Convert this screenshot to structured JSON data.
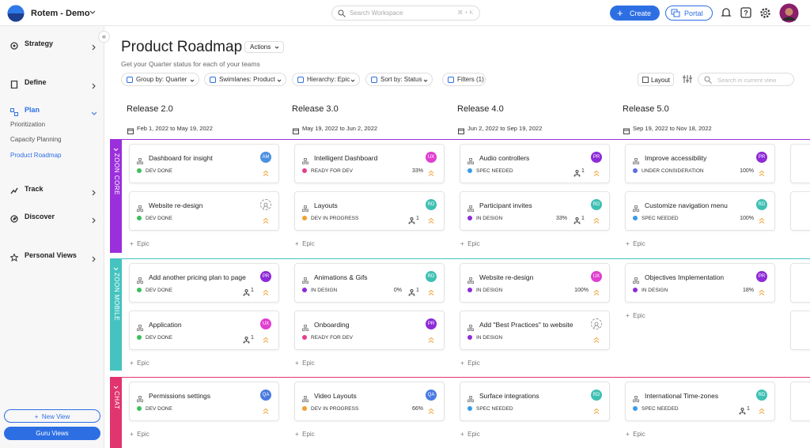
{
  "topbar": {
    "workspace": "Rotem - Demo",
    "search": "Search Workspace",
    "shortcut": "⌘ + K",
    "create": "Create",
    "portal": "Portal"
  },
  "sidebar": {
    "items": [
      {
        "label": "Strategy"
      },
      {
        "label": "Define"
      },
      {
        "label": "Plan",
        "children": [
          "Prioritization",
          "Capacity Planning",
          "Product Roadmap"
        ]
      },
      {
        "label": "Track"
      },
      {
        "label": "Discover"
      },
      {
        "label": "Personal Views"
      }
    ],
    "new_view": "New View",
    "guru_views": "Guru Views"
  },
  "header": {
    "title": "Product Roadmap",
    "actions": "Actions",
    "subtitle": "Get your Quarter status for each of your teams"
  },
  "toolbar": {
    "filters": [
      "Group by: Quarter",
      "Swimlanes: Product",
      "Hierarchy: Epic",
      "Sort by: Status",
      "Filters (1)"
    ],
    "layout": "Layout",
    "search": "Search in current view"
  },
  "board": {
    "add_label": "Epic",
    "releases": [
      {
        "name": "Release 2.0",
        "dates": "Feb 1, 2022 to May 19, 2022"
      },
      {
        "name": "Release 3.0",
        "dates": "May 19, 2022 to Jun 2, 2022"
      },
      {
        "name": "Release 4.0",
        "dates": "Jun 2, 2022 to Sep 19, 2022"
      },
      {
        "name": "Release 5.0",
        "dates": "Sep 19, 2022 to Nov 18, 2022"
      }
    ],
    "lanes": [
      {
        "name": "ZOON CORE",
        "color": "#9b2fdc",
        "columns": [
          [
            {
              "title": "Dashboard for insight",
              "status": "DEV DONE",
              "dot": "#3cbf5c",
              "avatar": "AM",
              "avatar_color": "#4a90e2"
            },
            {
              "title": "Website re-design",
              "status": "DEV DONE",
              "dot": "#3cbf5c"
            }
          ],
          [
            {
              "title": "Intelligent Dashboard",
              "status": "READY FOR DEV",
              "dot": "#e83e8c",
              "avatar": "UX",
              "avatar_color": "#e03fd0",
              "percent": "33%"
            },
            {
              "title": "Layouts",
              "status": "DEV IN PROGRESS",
              "dot": "#f0a030",
              "avatar": "RD",
              "avatar_color": "#3fc0b4",
              "children": "1"
            }
          ],
          [
            {
              "title": "Audio controllers",
              "status": "SPEC NEEDED",
              "dot": "#3a9be8",
              "avatar": "PR",
              "avatar_color": "#8e2bd8",
              "children": "1"
            },
            {
              "title": "Participant invites",
              "status": "IN DESIGN",
              "dot": "#8e2bd8",
              "avatar": "RD",
              "avatar_color": "#3fc0b4",
              "percent": "33%",
              "children": "1"
            }
          ],
          [
            {
              "title": "Improve accessibility",
              "status": "UNDER CONSIDERATION",
              "dot": "#5a6ee0",
              "avatar": "PR",
              "avatar_color": "#8e2bd8",
              "percent": "100%"
            },
            {
              "title": "Customize navigation menu",
              "status": "SPEC NEEDED",
              "dot": "#3a9be8",
              "avatar": "RD",
              "avatar_color": "#3fc0b4",
              "percent": "100%"
            }
          ]
        ]
      },
      {
        "name": "ZOON MOBILE",
        "color": "#45c3c0",
        "columns": [
          [
            {
              "title": "Add another pricing plan to page",
              "status": "DEV DONE",
              "dot": "#3cbf5c",
              "avatar": "PR",
              "avatar_color": "#8e2bd8",
              "children": "1"
            },
            {
              "title": "Application",
              "status": "DEV DONE",
              "dot": "#3cbf5c",
              "avatar": "UX",
              "avatar_color": "#e03fd0",
              "children": "1"
            }
          ],
          [
            {
              "title": "Animations & Gifs",
              "status": "IN DESIGN",
              "dot": "#8e2bd8",
              "avatar": "RD",
              "avatar_color": "#3fc0b4",
              "percent": "0%",
              "children": "1"
            },
            {
              "title": "Onboarding",
              "status": "READY FOR DEV",
              "dot": "#e83e8c",
              "avatar": "PR",
              "avatar_color": "#8e2bd8"
            }
          ],
          [
            {
              "title": "Website re-design",
              "status": "IN DESIGN",
              "dot": "#8e2bd8",
              "avatar": "UX",
              "avatar_color": "#e03fd0",
              "percent": "100%"
            },
            {
              "title": "Add \"Best Practices\" to website",
              "status": "IN DESIGN",
              "dot": "#8e2bd8"
            }
          ],
          [
            {
              "title": "Objectives Implementation",
              "status": "IN DESIGN",
              "dot": "#8e2bd8",
              "avatar": "PR",
              "avatar_color": "#8e2bd8",
              "percent": "18%"
            }
          ]
        ]
      },
      {
        "name": "CHAT",
        "color": "#e0356f",
        "columns": [
          [
            {
              "title": "Permissions settings",
              "status": "DEV DONE",
              "dot": "#3cbf5c",
              "avatar": "QA",
              "avatar_color": "#4a7be2"
            }
          ],
          [
            {
              "title": "Video Layouts",
              "status": "DEV IN PROGRESS",
              "dot": "#f0a030",
              "avatar": "QA",
              "avatar_color": "#4a7be2",
              "percent": "66%"
            }
          ],
          [
            {
              "title": "Surface integrations",
              "status": "SPEC NEEDED",
              "dot": "#3a9be8",
              "avatar": "RD",
              "avatar_color": "#3fc0b4"
            }
          ],
          [
            {
              "title": "International Time-zones",
              "status": "SPEC NEEDED",
              "dot": "#3a9be8",
              "avatar": "RD",
              "avatar_color": "#3fc0b4",
              "children": "1"
            }
          ]
        ]
      }
    ]
  }
}
